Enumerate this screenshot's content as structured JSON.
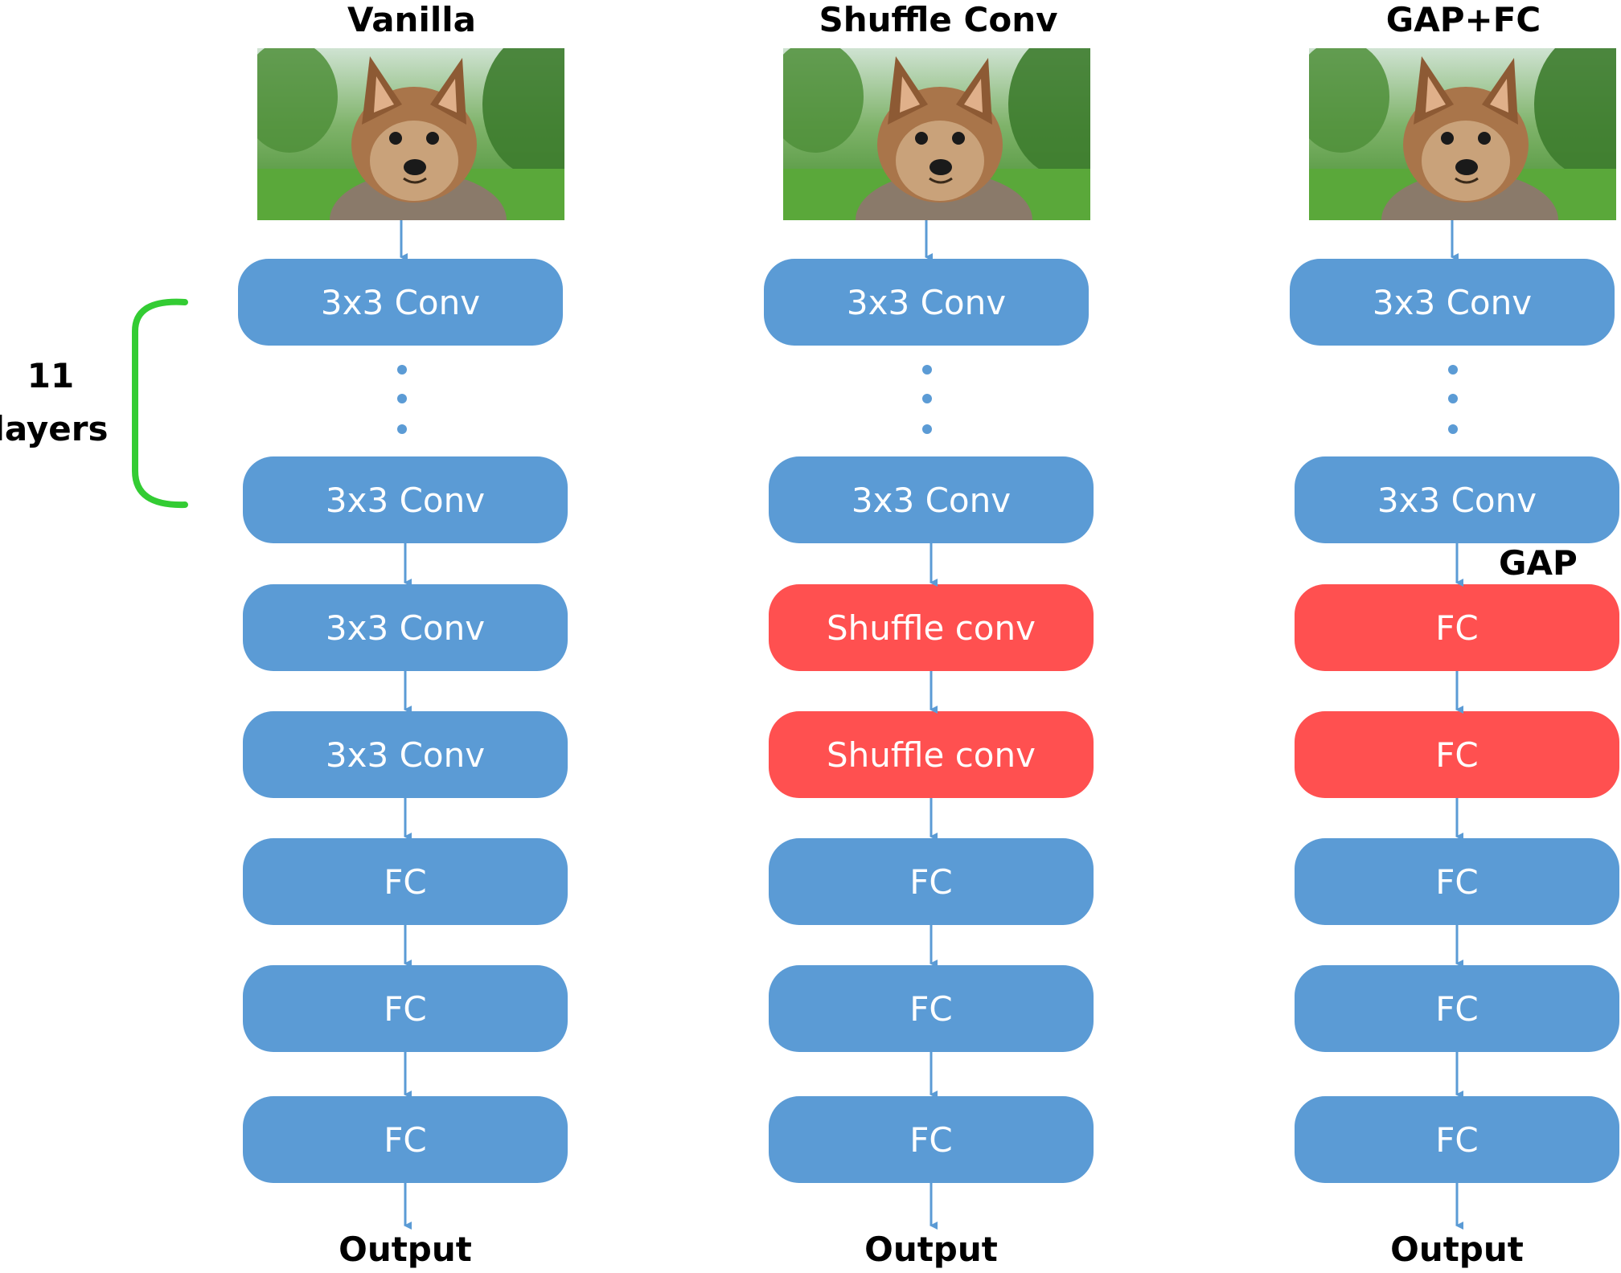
{
  "columns": [
    {
      "title": "Vanilla",
      "blocks": [
        {
          "label": "3x3 Conv",
          "color": "#5b9bd5"
        },
        {
          "label": "3x3 Conv",
          "color": "#5b9bd5"
        },
        {
          "label": "3x3 Conv",
          "color": "#5b9bd5"
        },
        {
          "label": "3x3 Conv",
          "color": "#5b9bd5"
        },
        {
          "label": "FC",
          "color": "#5b9bd5"
        },
        {
          "label": "FC",
          "color": "#5b9bd5"
        },
        {
          "label": "FC",
          "color": "#5b9bd5"
        }
      ],
      "output": "Output"
    },
    {
      "title": "Shuffle Conv",
      "blocks": [
        {
          "label": "3x3 Conv",
          "color": "#5b9bd5"
        },
        {
          "label": "3x3 Conv",
          "color": "#5b9bd5"
        },
        {
          "label": "Shuffle conv",
          "color": "#ff5050"
        },
        {
          "label": "Shuffle conv",
          "color": "#ff5050"
        },
        {
          "label": "FC",
          "color": "#5b9bd5"
        },
        {
          "label": "FC",
          "color": "#5b9bd5"
        },
        {
          "label": "FC",
          "color": "#5b9bd5"
        }
      ],
      "output": "Output"
    },
    {
      "title": "GAP+FC",
      "blocks": [
        {
          "label": "3x3 Conv",
          "color": "#5b9bd5"
        },
        {
          "label": "3x3 Conv",
          "color": "#5b9bd5"
        },
        {
          "label": "FC",
          "color": "#ff5050"
        },
        {
          "label": "FC",
          "color": "#ff5050"
        },
        {
          "label": "FC",
          "color": "#5b9bd5"
        },
        {
          "label": "FC",
          "color": "#5b9bd5"
        },
        {
          "label": "FC",
          "color": "#5b9bd5"
        }
      ],
      "output": "Output"
    }
  ],
  "annotations": {
    "layers_count": "11",
    "layers_word": "layers",
    "gap": "GAP",
    "bracket_color": "#33cc33",
    "arrow_color": "#5b9bd5"
  }
}
